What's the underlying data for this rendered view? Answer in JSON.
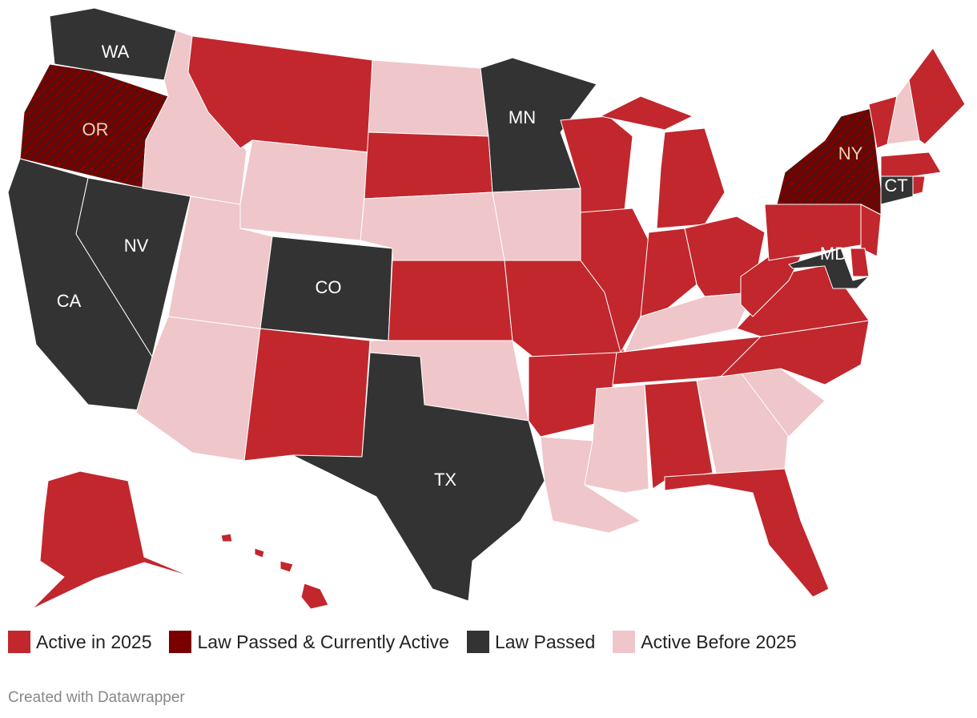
{
  "map": {
    "labels": [
      "WA",
      "OR",
      "NV",
      "CA",
      "CO",
      "MN",
      "TX",
      "NY",
      "CT",
      "MD"
    ]
  },
  "legend": [
    {
      "name": "Active in 2025",
      "color": "#c1272d"
    },
    {
      "name": "Law Passed & Currently Active",
      "color": "#7a0000"
    },
    {
      "name": "Law Passed",
      "color": "#333333"
    },
    {
      "name": "Active Before 2025",
      "color": "#efc6c9"
    }
  ],
  "footer": "Created with Datawrapper"
}
